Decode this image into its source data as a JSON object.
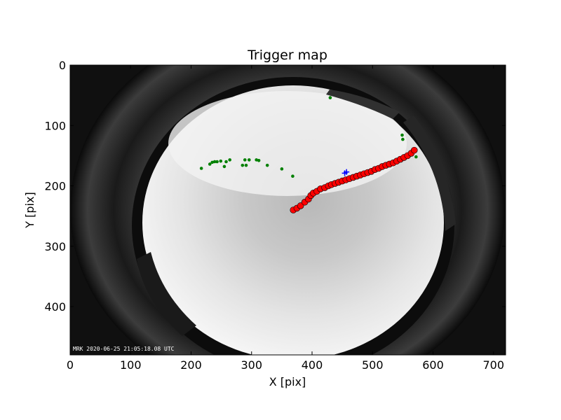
{
  "chart_data": {
    "type": "scatter",
    "title": "Trigger map",
    "xlabel": "X [pix]",
    "ylabel": "Y [pix]",
    "xlim": [
      0,
      720
    ],
    "ylim": [
      480,
      0
    ],
    "xticks": [
      0,
      100,
      200,
      300,
      400,
      500,
      600,
      700
    ],
    "yticks": [
      0,
      100,
      200,
      300,
      400
    ],
    "background_image": "all-sky fisheye camera frame (grayscale)",
    "timestamp_stamp": "MRK 2020-06-25 21:05:18.08 UTC",
    "colors": {
      "green_series": "#008000",
      "red_series": "#ff0000",
      "blue_series": "#0000ff"
    },
    "series": [
      {
        "color": "#008000",
        "marker": "circle-small",
        "x": [
          217,
          231,
          235,
          239,
          243,
          249,
          255,
          258,
          264,
          285,
          289,
          291,
          296,
          308,
          312,
          326,
          350,
          368,
          430,
          549,
          550,
          572
        ],
        "y": [
          171,
          164,
          161,
          160,
          160,
          159,
          168,
          160,
          157,
          166,
          157,
          166,
          157,
          157,
          158,
          166,
          172,
          184,
          54,
          116,
          123,
          152
        ]
      },
      {
        "color": "#ff0000",
        "marker": "circle-large",
        "x": [
          369,
          375,
          381,
          388,
          394,
          398,
          402,
          408,
          414,
          421,
          427,
          432,
          438,
          444,
          450,
          456,
          462,
          468,
          474,
          480,
          486,
          492,
          498,
          504,
          510,
          516,
          522,
          528,
          534,
          540,
          546,
          552,
          558,
          564,
          569
        ],
        "y": [
          240,
          237,
          233,
          227,
          222,
          216,
          212,
          209,
          205,
          203,
          200,
          198,
          196,
          194,
          192,
          190,
          188,
          186,
          184,
          182,
          180,
          178,
          176,
          173,
          171,
          168,
          166,
          164,
          162,
          159,
          156,
          153,
          150,
          146,
          141
        ]
      },
      {
        "color": "#0000ff",
        "marker": "plus",
        "x": [
          454,
          457
        ],
        "y": [
          179,
          177
        ]
      }
    ]
  }
}
